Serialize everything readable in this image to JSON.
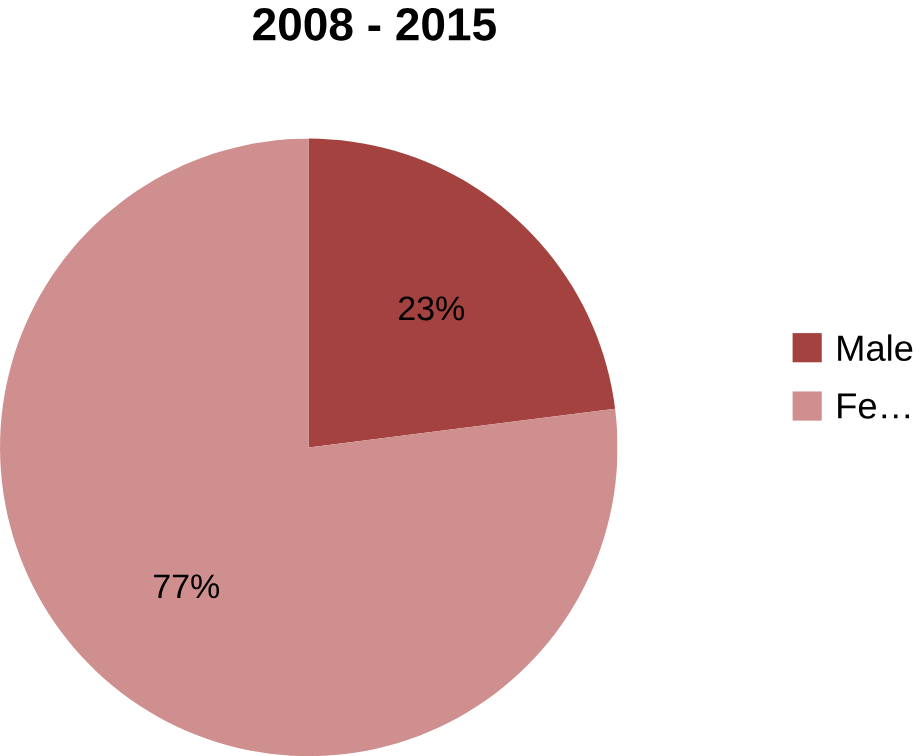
{
  "chart_data": {
    "type": "pie",
    "title": "2008 - 2015",
    "categories": [
      "Male",
      "Fe…"
    ],
    "values": [
      23,
      77
    ],
    "colors": [
      "#a3423f",
      "#cf8f8e"
    ],
    "value_labels": [
      "23%",
      "77%"
    ],
    "legend": "right"
  }
}
